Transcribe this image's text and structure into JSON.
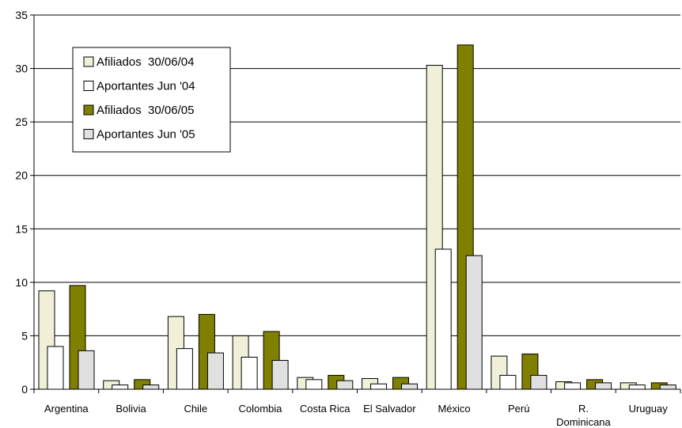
{
  "chart_data": {
    "type": "bar",
    "title": "",
    "xlabel": "",
    "ylabel": "",
    "ylim": [
      0,
      35
    ],
    "yticks": [
      0,
      5,
      10,
      15,
      20,
      25,
      30,
      35
    ],
    "grid": true,
    "legend_position": "top-left",
    "categories": [
      [
        "Argentina"
      ],
      [
        "Bolivia"
      ],
      [
        "Chile"
      ],
      [
        "Colombia"
      ],
      [
        "Costa Rica"
      ],
      [
        "El Salvador"
      ],
      [
        "México"
      ],
      [
        "Perú"
      ],
      [
        "R.",
        "Dominicana"
      ],
      [
        "Uruguay"
      ]
    ],
    "series": [
      {
        "name": "Afiliados  30/06/04",
        "color": "#f0f0d8",
        "values": [
          9.2,
          0.8,
          6.8,
          5.0,
          1.1,
          1.0,
          30.3,
          3.1,
          0.7,
          0.6
        ]
      },
      {
        "name": "Aportantes Jun '04",
        "color": "#ffffff",
        "values": [
          4.0,
          0.4,
          3.8,
          3.0,
          0.9,
          0.5,
          13.1,
          1.3,
          0.6,
          0.4
        ]
      },
      {
        "name": "Afiliados  30/06/05",
        "color": "#808000",
        "values": [
          9.7,
          0.9,
          7.0,
          5.4,
          1.3,
          1.1,
          32.2,
          3.3,
          0.9,
          0.6
        ]
      },
      {
        "name": "Aportantes Jun '05",
        "color": "#e0e0e0",
        "values": [
          3.6,
          0.4,
          3.4,
          2.7,
          0.8,
          0.5,
          12.5,
          1.3,
          0.6,
          0.4
        ]
      }
    ]
  }
}
